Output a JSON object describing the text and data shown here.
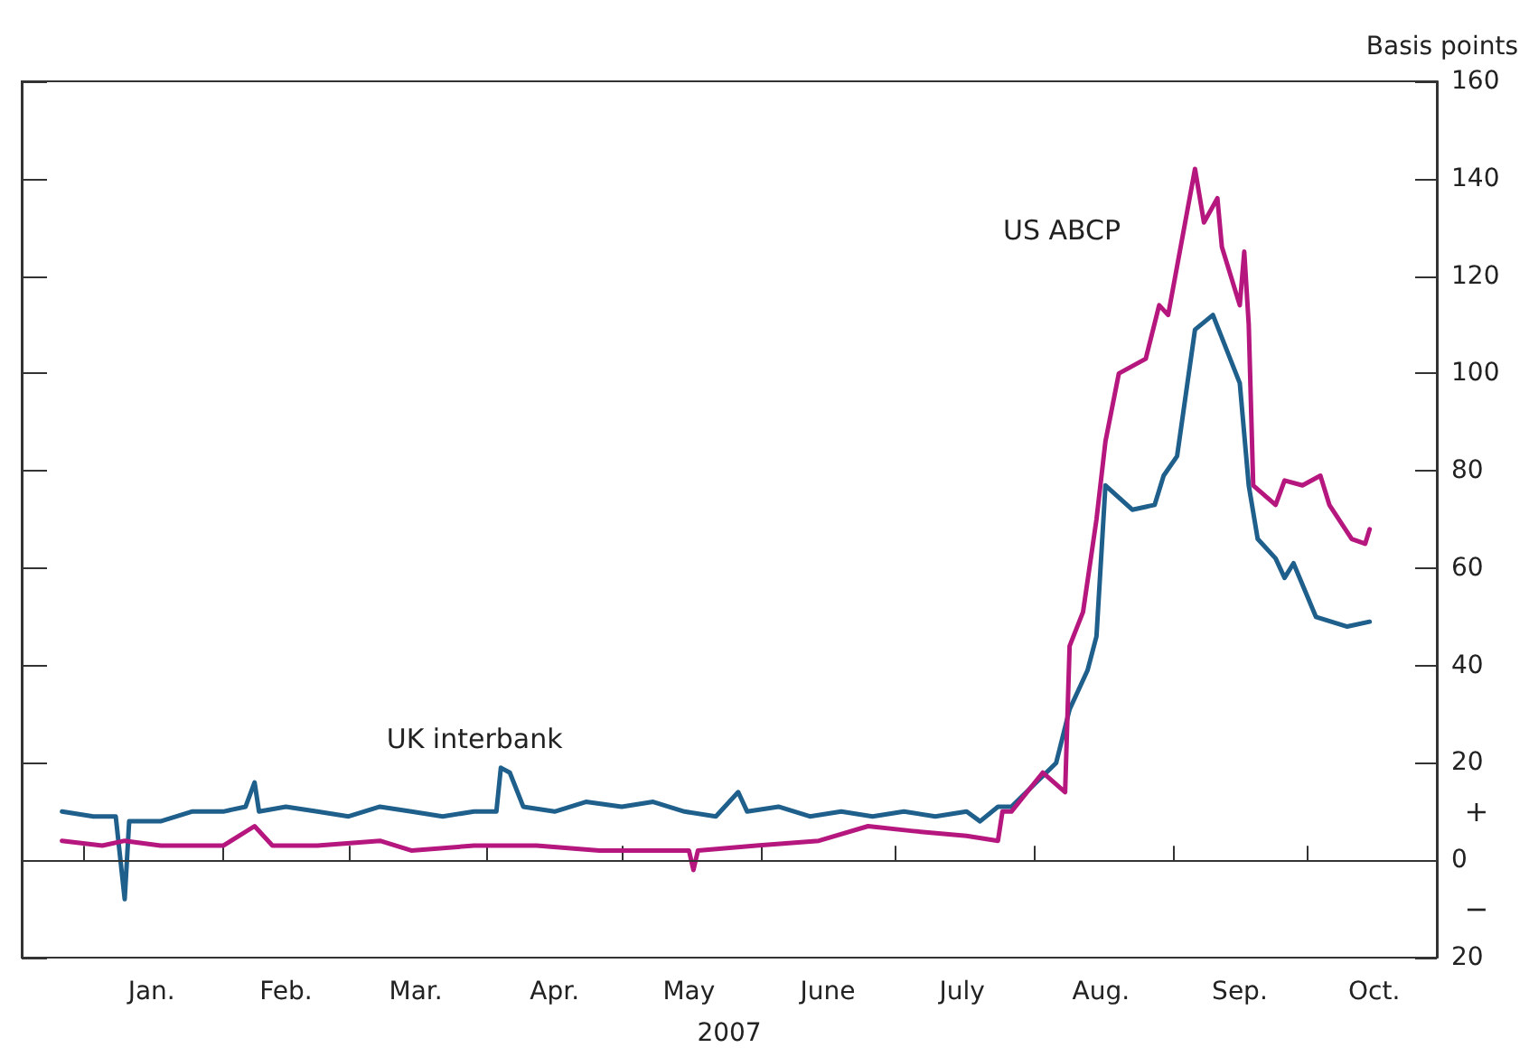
{
  "chart_data": {
    "type": "line",
    "xlabel": "2007",
    "ylabel": "Basis points",
    "xlim": [
      "2006-12-18",
      "2007-10-30"
    ],
    "xticks": [
      {
        "value": "2007-01-01",
        "label": null
      },
      {
        "value": "2007-01-16",
        "label": "Jan."
      },
      {
        "value": "2007-02-01",
        "label": null
      },
      {
        "value": "2007-02-15",
        "label": "Feb."
      },
      {
        "value": "2007-03-01",
        "label": null
      },
      {
        "value": "2007-03-16",
        "label": "Mar."
      },
      {
        "value": "2007-04-01",
        "label": null
      },
      {
        "value": "2007-04-16",
        "label": "Apr."
      },
      {
        "value": "2007-05-01",
        "label": null
      },
      {
        "value": "2007-05-16",
        "label": "May"
      },
      {
        "value": "2007-06-01",
        "label": null
      },
      {
        "value": "2007-06-16",
        "label": "June"
      },
      {
        "value": "2007-07-01",
        "label": null
      },
      {
        "value": "2007-07-16",
        "label": "July"
      },
      {
        "value": "2007-08-01",
        "label": null
      },
      {
        "value": "2007-08-16",
        "label": "Aug."
      },
      {
        "value": "2007-09-01",
        "label": null
      },
      {
        "value": "2007-09-16",
        "label": "Sep."
      },
      {
        "value": "2007-10-01",
        "label": null
      },
      {
        "value": "2007-10-16",
        "label": "Oct."
      }
    ],
    "ylim": [
      -20,
      160
    ],
    "yticks": [
      {
        "value": -20,
        "label": "20"
      },
      0,
      20,
      40,
      60,
      80,
      100,
      120,
      140,
      160
    ],
    "series": [
      {
        "name": "UK interbank",
        "color": "#1f5f8b",
        "x": [
          "2006-12-27",
          "2007-01-03",
          "2007-01-08",
          "2007-01-10",
          "2007-01-11",
          "2007-01-18",
          "2007-01-25",
          "2007-02-01",
          "2007-02-06",
          "2007-02-08",
          "2007-02-09",
          "2007-02-15",
          "2007-02-22",
          "2007-03-01",
          "2007-03-08",
          "2007-03-15",
          "2007-03-22",
          "2007-03-29",
          "2007-04-03",
          "2007-04-04",
          "2007-04-06",
          "2007-04-09",
          "2007-04-16",
          "2007-04-23",
          "2007-05-01",
          "2007-05-08",
          "2007-05-15",
          "2007-05-22",
          "2007-05-27",
          "2007-05-29",
          "2007-06-05",
          "2007-06-12",
          "2007-06-19",
          "2007-06-26",
          "2007-07-03",
          "2007-07-10",
          "2007-07-17",
          "2007-07-20",
          "2007-07-24",
          "2007-07-27",
          "2007-08-06",
          "2007-08-09",
          "2007-08-13",
          "2007-08-15",
          "2007-08-17",
          "2007-08-23",
          "2007-08-28",
          "2007-08-30",
          "2007-09-02",
          "2007-09-06",
          "2007-09-10",
          "2007-09-16",
          "2007-09-18",
          "2007-09-20",
          "2007-09-24",
          "2007-09-26",
          "2007-09-28",
          "2007-10-03",
          "2007-10-10",
          "2007-10-15"
        ],
        "values": [
          10,
          9,
          9,
          -8,
          8,
          8,
          10,
          10,
          11,
          16,
          10,
          11,
          10,
          9,
          11,
          10,
          9,
          10,
          10,
          19,
          18,
          11,
          10,
          12,
          11,
          12,
          10,
          9,
          14,
          10,
          11,
          9,
          10,
          9,
          10,
          9,
          10,
          8,
          11,
          11,
          20,
          31,
          39,
          46,
          77,
          72,
          73,
          79,
          83,
          109,
          112,
          98,
          77,
          66,
          62,
          58,
          61,
          50,
          48,
          49
        ]
      },
      {
        "name": "US ABCP",
        "color": "#b5177e",
        "x": [
          "2006-12-27",
          "2007-01-05",
          "2007-01-10",
          "2007-01-18",
          "2007-02-01",
          "2007-02-08",
          "2007-02-12",
          "2007-02-22",
          "2007-03-08",
          "2007-03-15",
          "2007-03-29",
          "2007-04-12",
          "2007-04-26",
          "2007-05-10",
          "2007-05-16",
          "2007-05-17",
          "2007-05-18",
          "2007-05-31",
          "2007-06-14",
          "2007-06-25",
          "2007-07-05",
          "2007-07-17",
          "2007-07-24",
          "2007-07-25",
          "2007-07-27",
          "2007-08-03",
          "2007-08-08",
          "2007-08-09",
          "2007-08-12",
          "2007-08-15",
          "2007-08-17",
          "2007-08-20",
          "2007-08-26",
          "2007-08-29",
          "2007-08-31",
          "2007-09-04",
          "2007-09-06",
          "2007-09-08",
          "2007-09-11",
          "2007-09-12",
          "2007-09-16",
          "2007-09-17",
          "2007-09-18",
          "2007-09-19",
          "2007-09-24",
          "2007-09-26",
          "2007-09-30",
          "2007-10-04",
          "2007-10-06",
          "2007-10-11",
          "2007-10-14",
          "2007-10-15"
        ],
        "values": [
          4,
          3,
          4,
          3,
          3,
          7,
          3,
          3,
          4,
          2,
          3,
          3,
          2,
          2,
          2,
          -2,
          2,
          3,
          4,
          7,
          6,
          5,
          4,
          10,
          10,
          18,
          14,
          44,
          51,
          70,
          86,
          100,
          103,
          114,
          112,
          132,
          142,
          131,
          136,
          126,
          114,
          125,
          110,
          77,
          73,
          78,
          77,
          79,
          73,
          66,
          65,
          68
        ]
      }
    ],
    "annotations": [
      "+",
      "−"
    ],
    "ref_lines": [
      {
        "axis": "y",
        "value": 0,
        "color": "#333333"
      }
    ],
    "marker": "none",
    "line_style": "solid"
  }
}
